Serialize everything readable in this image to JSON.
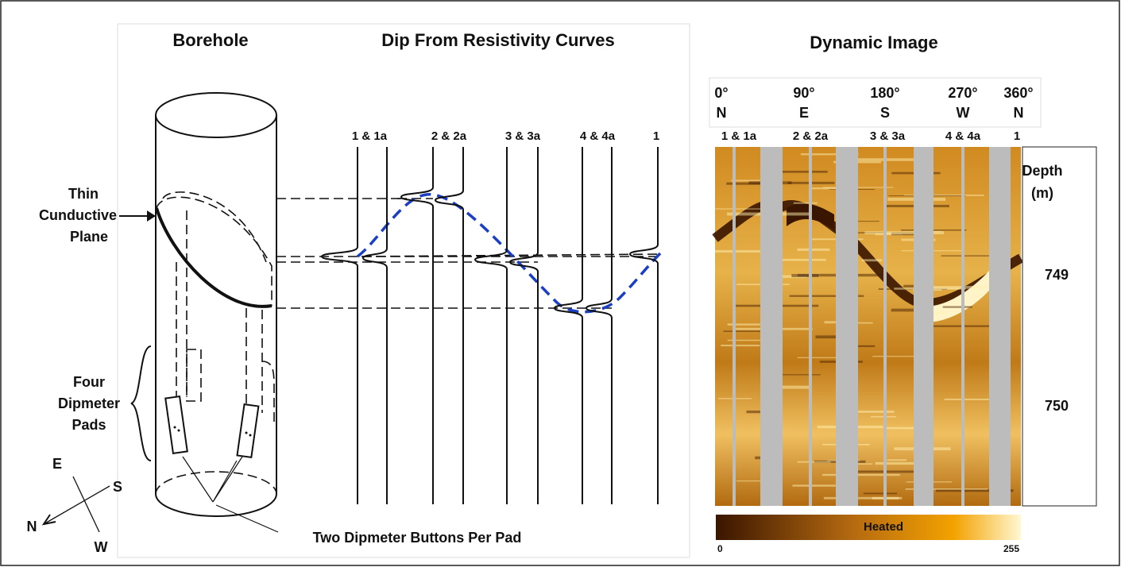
{
  "titles": {
    "borehole": "Borehole",
    "curves": "Dip From Resistivity Curves",
    "image": "Dynamic Image"
  },
  "borehole": {
    "plane_label": [
      "Thin",
      "Cunductive",
      "Plane"
    ],
    "pads_label": [
      "Four",
      "Dipmeter",
      "Pads"
    ],
    "buttons_label": "Two Dipmeter Buttons Per Pad",
    "compass": {
      "east": "E",
      "south": "S",
      "north": "N",
      "west": "W"
    }
  },
  "curve_labels": [
    "1 & 1a",
    "2 & 2a",
    "3 & 3a",
    "4 & 4a",
    "1"
  ],
  "azimuths": [
    {
      "angle": "0°",
      "dir": "N"
    },
    {
      "angle": "90°",
      "dir": "E"
    },
    {
      "angle": "180°",
      "dir": "S"
    },
    {
      "angle": "270°",
      "dir": "W"
    },
    {
      "angle": "360°",
      "dir": "N"
    }
  ],
  "pad_labels": [
    "1 & 1a",
    "2 & 2a",
    "3 & 3a",
    "4 & 4a",
    "1"
  ],
  "depth": {
    "title": "Depth",
    "unit": "(m)",
    "marks": [
      "749",
      "750"
    ]
  },
  "colorbar": {
    "label": "Heated",
    "min": 0,
    "max": 255
  }
}
